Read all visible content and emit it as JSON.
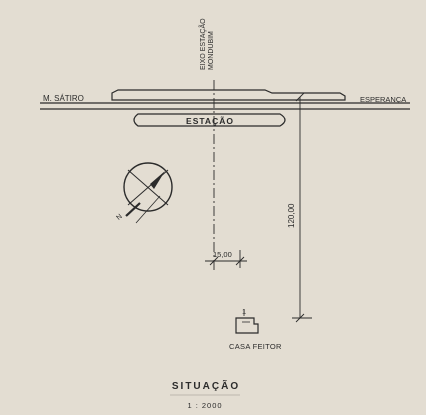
{
  "labels": {
    "left_station": "M. SÁTIRO",
    "right_station": "ESPERANÇA",
    "platform": "ESTAÇÃO",
    "axis": "EIXO ESTAÇÃO MONDUBIM",
    "axis_line1": "EIXO ESTAÇÃO",
    "axis_line2": "MONDUBIM",
    "dim_vertical": "120,00",
    "dim_horizontal": "15,00",
    "marker": "1",
    "building": "CASA FEITOR",
    "title": "SITUAÇÃO",
    "scale": "1 : 2000",
    "north": "N"
  },
  "colors": {
    "background": "#e3ddd2",
    "ink": "#2b2b2b"
  }
}
